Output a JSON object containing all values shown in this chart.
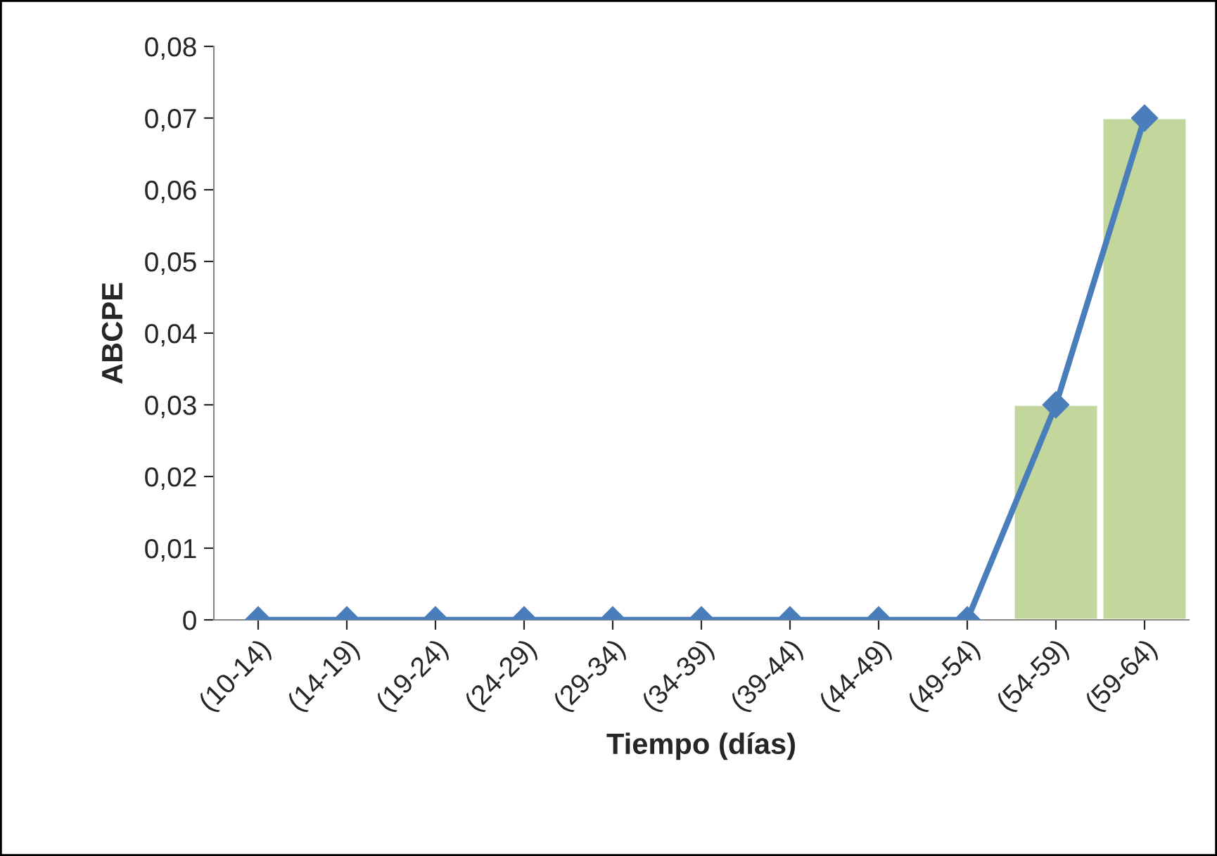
{
  "chart_data": {
    "type": "bar",
    "xlabel": "Tiempo (días)",
    "ylabel": "ABCPE",
    "categories": [
      "(10-14)",
      "(14-19)",
      "(19-24)",
      "(24-29)",
      "(29-34)",
      "(34-39)",
      "(39-44)",
      "(44-49)",
      "(49-54)",
      "(54-59)",
      "(59-64)"
    ],
    "series": [
      {
        "color": "#c3d69b",
        "values": [
          null,
          null,
          null,
          null,
          null,
          null,
          null,
          null,
          null,
          0.03,
          0.07
        ]
      },
      {
        "type": "line",
        "color": "#4a7ebb",
        "marker": "diamond",
        "line_style": "solid",
        "values": [
          0,
          0,
          0,
          0,
          0,
          0,
          0,
          0,
          0,
          0.03,
          0.07
        ]
      }
    ],
    "ylim": [
      0,
      0.08
    ],
    "yticks": [
      0,
      {
        "value": 0.01,
        "label": "0,01"
      },
      {
        "value": 0.02,
        "label": "0,02"
      },
      {
        "value": 0.03,
        "label": "0,03"
      },
      {
        "value": 0.04,
        "label": "0,04"
      },
      {
        "value": 0.05,
        "label": "0,05"
      },
      {
        "value": 0.06,
        "label": "0,06"
      },
      {
        "value": 0.07,
        "label": "0,07"
      },
      {
        "value": 0.08,
        "label": "0,08"
      }
    ],
    "grid": false,
    "legend": false
  }
}
